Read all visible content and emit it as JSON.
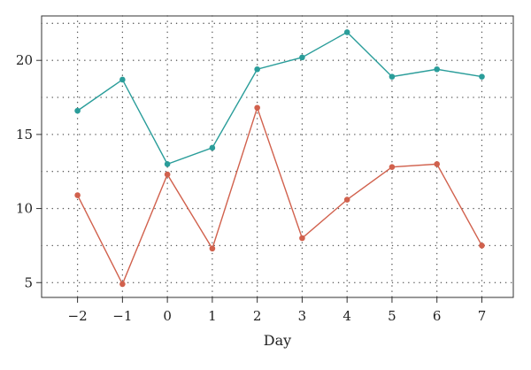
{
  "chart_data": {
    "type": "line",
    "title": "",
    "xlabel": "Day",
    "ylabel": "",
    "x": [
      -2,
      -1,
      0,
      1,
      2,
      3,
      4,
      5,
      6,
      7
    ],
    "x_tick_labels": [
      "−2",
      "−1",
      "0",
      "1",
      "2",
      "3",
      "4",
      "5",
      "6",
      "7"
    ],
    "y_ticks": [
      5,
      10,
      15,
      20
    ],
    "y_tick_labels": [
      "5",
      "10",
      "15",
      "20"
    ],
    "xlim": [
      -2.8,
      7.7
    ],
    "ylim": [
      4.0,
      23.0
    ],
    "grid": "dotted",
    "legend": "none",
    "series": [
      {
        "color": "#2a9d9a",
        "values": [
          16.6,
          18.7,
          13.0,
          14.1,
          19.4,
          20.2,
          21.9,
          18.9,
          19.4,
          18.9
        ]
      },
      {
        "color": "#d1614d",
        "values": [
          10.9,
          4.9,
          12.3,
          7.3,
          16.8,
          8.0,
          10.6,
          12.8,
          13.0,
          7.5
        ]
      }
    ]
  }
}
